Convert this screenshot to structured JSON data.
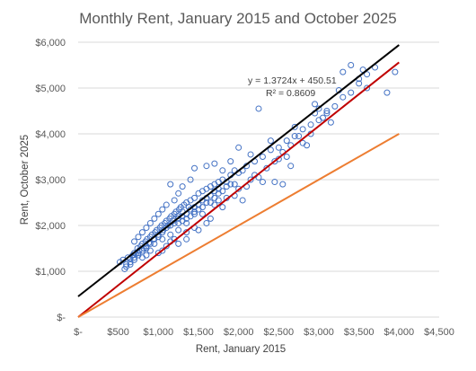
{
  "chart_data": {
    "type": "scatter",
    "title": "Monthly Rent, January 2015 and October 2025",
    "xlabel": "Rent, January 2015",
    "ylabel": "Rent, October 2025",
    "xlim": [
      0,
      4500
    ],
    "ylim": [
      0,
      6000
    ],
    "x_ticks": [
      0,
      500,
      1000,
      1500,
      2000,
      2500,
      3000,
      3500,
      4000,
      4500
    ],
    "x_tick_labels": [
      "$-",
      "$500",
      "$1,000",
      "$1,500",
      "$2,000",
      "$2,500",
      "$3,000",
      "$3,500",
      "$4,000",
      "$4,500"
    ],
    "y_ticks": [
      0,
      1000,
      2000,
      3000,
      4000,
      5000,
      6000
    ],
    "y_tick_labels": [
      "$-",
      "$1,000",
      "$2,000",
      "$3,000",
      "$4,000",
      "$5,000",
      "$6,000"
    ],
    "grid": "horizontal",
    "legend": "none",
    "colors": {
      "points": "#4472C4",
      "regression": "#000000",
      "red_line": "#C00000",
      "orange_line": "#ED7D31",
      "grid": "#D9D9D9"
    },
    "annotation": {
      "equation": "y = 1.3724x + 450.51",
      "r_squared": "R² = 0.8609"
    },
    "lines": [
      {
        "color": "regression",
        "x": [
          0,
          4000
        ],
        "y": [
          450.51,
          5940.11
        ]
      },
      {
        "color": "red_line",
        "x": [
          0,
          4000
        ],
        "y": [
          0,
          5560
        ]
      },
      {
        "color": "orange_line",
        "x": [
          0,
          4000
        ],
        "y": [
          0,
          4000
        ]
      }
    ],
    "series": [
      {
        "values": [
          [
            520,
            1200
          ],
          [
            560,
            1250
          ],
          [
            600,
            1150
          ],
          [
            620,
            1300
          ],
          [
            650,
            1280
          ],
          [
            680,
            1350
          ],
          [
            700,
            1400
          ],
          [
            720,
            1380
          ],
          [
            740,
            1500
          ],
          [
            760,
            1450
          ],
          [
            780,
            1550
          ],
          [
            800,
            1600
          ],
          [
            820,
            1500
          ],
          [
            840,
            1650
          ],
          [
            860,
            1700
          ],
          [
            880,
            1620
          ],
          [
            900,
            1750
          ],
          [
            920,
            1800
          ],
          [
            940,
            1700
          ],
          [
            960,
            1850
          ],
          [
            980,
            1900
          ],
          [
            1000,
            1800
          ],
          [
            1020,
            1950
          ],
          [
            1040,
            2000
          ],
          [
            1060,
            1900
          ],
          [
            1080,
            2050
          ],
          [
            1100,
            2100
          ],
          [
            1120,
            2000
          ],
          [
            1140,
            2150
          ],
          [
            1160,
            2200
          ],
          [
            1180,
            2100
          ],
          [
            1200,
            2250
          ],
          [
            1220,
            2300
          ],
          [
            1240,
            2200
          ],
          [
            1260,
            2350
          ],
          [
            1280,
            2400
          ],
          [
            1300,
            2300
          ],
          [
            1320,
            2450
          ],
          [
            1350,
            2500
          ],
          [
            1380,
            2400
          ],
          [
            1400,
            2550
          ],
          [
            1450,
            2600
          ],
          [
            1500,
            2700
          ],
          [
            1550,
            2750
          ],
          [
            1600,
            2800
          ],
          [
            1650,
            2850
          ],
          [
            1700,
            2900
          ],
          [
            1750,
            2950
          ],
          [
            1800,
            3000
          ],
          [
            1850,
            2950
          ],
          [
            1900,
            3100
          ],
          [
            1950,
            3200
          ],
          [
            2000,
            3150
          ],
          [
            2100,
            3300
          ],
          [
            2200,
            3400
          ],
          [
            2300,
            3500
          ],
          [
            2400,
            3650
          ],
          [
            2500,
            3700
          ],
          [
            2600,
            3850
          ],
          [
            2700,
            3950
          ],
          [
            2800,
            4100
          ],
          [
            2900,
            4200
          ],
          [
            3000,
            4300
          ],
          [
            3100,
            4500
          ],
          [
            3200,
            4600
          ],
          [
            3300,
            4800
          ],
          [
            3400,
            4900
          ],
          [
            3500,
            5100
          ],
          [
            3600,
            5300
          ],
          [
            3700,
            5450
          ],
          [
            3300,
            5350
          ],
          [
            3500,
            5200
          ],
          [
            2950,
            4650
          ],
          [
            3050,
            4350
          ],
          [
            3150,
            4250
          ],
          [
            2850,
            3750
          ],
          [
            2650,
            3300
          ],
          [
            2450,
            2950
          ],
          [
            2550,
            2900
          ],
          [
            2000,
            3700
          ],
          [
            1900,
            3400
          ],
          [
            1800,
            3200
          ],
          [
            1700,
            3350
          ],
          [
            1750,
            2700
          ],
          [
            1650,
            2500
          ],
          [
            1550,
            2400
          ],
          [
            1450,
            2250
          ],
          [
            1350,
            2050
          ],
          [
            1250,
            1900
          ],
          [
            1150,
            1800
          ],
          [
            1050,
            1700
          ],
          [
            950,
            1600
          ],
          [
            850,
            1500
          ],
          [
            750,
            1350
          ],
          [
            650,
            1200
          ],
          [
            600,
            1100
          ],
          [
            1150,
            2900
          ],
          [
            1300,
            2850
          ],
          [
            1400,
            3000
          ],
          [
            1450,
            3250
          ],
          [
            1600,
            3300
          ],
          [
            1250,
            2700
          ],
          [
            1200,
            2550
          ],
          [
            1100,
            2450
          ],
          [
            1050,
            2350
          ],
          [
            1000,
            2250
          ],
          [
            950,
            2150
          ],
          [
            900,
            2050
          ],
          [
            850,
            1950
          ],
          [
            800,
            1850
          ],
          [
            750,
            1750
          ],
          [
            700,
            1650
          ],
          [
            1250,
            1600
          ],
          [
            1350,
            1700
          ],
          [
            1500,
            1900
          ],
          [
            1650,
            2150
          ],
          [
            1800,
            2400
          ],
          [
            1950,
            2650
          ],
          [
            2100,
            2850
          ],
          [
            2250,
            3050
          ],
          [
            2050,
            2550
          ],
          [
            2150,
            3000
          ],
          [
            2350,
            3250
          ],
          [
            2450,
            3400
          ],
          [
            2550,
            3600
          ],
          [
            2650,
            3750
          ],
          [
            2750,
            3950
          ],
          [
            2250,
            4550
          ],
          [
            2700,
            4150
          ],
          [
            2950,
            4450
          ],
          [
            3000,
            4550
          ],
          [
            2150,
            3550
          ],
          [
            1900,
            2900
          ],
          [
            2050,
            3200
          ],
          [
            2300,
            2950
          ],
          [
            2400,
            3850
          ],
          [
            1600,
            2050
          ],
          [
            1450,
            1950
          ],
          [
            1350,
            1850
          ],
          [
            1200,
            1700
          ],
          [
            1150,
            1650
          ],
          [
            1100,
            1550
          ],
          [
            1050,
            1450
          ],
          [
            1000,
            1400
          ],
          [
            900,
            1450
          ],
          [
            850,
            1350
          ],
          [
            800,
            1300
          ],
          [
            700,
            1250
          ],
          [
            650,
            1150
          ],
          [
            580,
            1050
          ],
          [
            1700,
            2600
          ],
          [
            1800,
            2750
          ],
          [
            1150,
            2000
          ],
          [
            1200,
            2050
          ],
          [
            1250,
            2150
          ],
          [
            1300,
            2200
          ],
          [
            1350,
            2250
          ],
          [
            1400,
            2350
          ],
          [
            1450,
            2400
          ],
          [
            1500,
            2450
          ],
          [
            1550,
            2550
          ],
          [
            1600,
            2600
          ],
          [
            1700,
            2750
          ],
          [
            1750,
            2800
          ],
          [
            1850,
            2850
          ],
          [
            1950,
            2900
          ],
          [
            1100,
            1950
          ],
          [
            1050,
            1850
          ],
          [
            1000,
            1750
          ],
          [
            950,
            1700
          ],
          [
            900,
            1600
          ],
          [
            850,
            1550
          ],
          [
            800,
            1450
          ],
          [
            750,
            1400
          ],
          [
            700,
            1300
          ],
          [
            1250,
            2050
          ],
          [
            1300,
            2100
          ],
          [
            1350,
            2150
          ],
          [
            1400,
            2200
          ],
          [
            1450,
            2300
          ],
          [
            1500,
            2350
          ],
          [
            1550,
            2250
          ],
          [
            1600,
            2500
          ],
          [
            1650,
            2650
          ],
          [
            1700,
            2450
          ],
          [
            1750,
            2550
          ],
          [
            1850,
            2600
          ],
          [
            2000,
            2800
          ],
          [
            2200,
            3100
          ],
          [
            2500,
            3450
          ],
          [
            2800,
            3800
          ],
          [
            3600,
            5000
          ],
          [
            3850,
            4900
          ],
          [
            3950,
            5350
          ],
          [
            3400,
            5500
          ],
          [
            3550,
            5400
          ],
          [
            3250,
            4950
          ],
          [
            3100,
            4450
          ],
          [
            2900,
            4000
          ],
          [
            2600,
            3500
          ]
        ]
      }
    ]
  }
}
